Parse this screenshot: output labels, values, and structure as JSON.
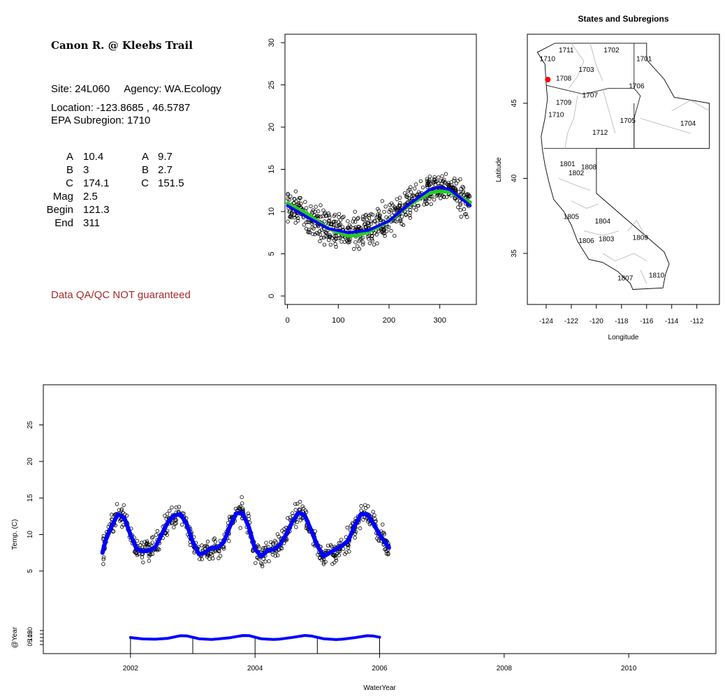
{
  "site": {
    "title": "Canon R. @ Kleebs Trail",
    "site_line": "Site: 24L060     Agency: WA.Ecology",
    "location_line": "Location: -123.8685 , 46.5787",
    "subregion_line": "EPA Subregion: 1710",
    "disclaimer": "Data QA/QC NOT guaranteed",
    "disclaimer_color": "#a52a2a"
  },
  "params": {
    "left": [
      {
        "key": "A",
        "value": "10.4"
      },
      {
        "key": "B",
        "value": "3"
      },
      {
        "key": "C",
        "value": "174.1"
      },
      {
        "key": "Mag",
        "value": "2.5"
      },
      {
        "key": "Begin",
        "value": "121.3"
      },
      {
        "key": "End",
        "value": "311"
      }
    ],
    "right": [
      {
        "key": "A",
        "value": "9.7"
      },
      {
        "key": "B",
        "value": "2.7"
      },
      {
        "key": "C",
        "value": "151.5"
      }
    ]
  },
  "chart_data": [
    {
      "type": "scatter",
      "panel": "day-of-year",
      "title": "",
      "xlabel": "",
      "ylabel": "",
      "xlim": [
        -5,
        372
      ],
      "ylim": [
        -1,
        31
      ],
      "xticks": [
        0,
        100,
        200,
        300
      ],
      "yticks": [
        0,
        5,
        10,
        15,
        20,
        25,
        30
      ],
      "series": [
        {
          "kind": "points",
          "color": "#000000",
          "x": [
            0,
            20,
            40,
            60,
            80,
            100,
            120,
            140,
            160,
            180,
            200,
            220,
            240,
            260,
            280,
            300,
            320,
            340,
            360
          ],
          "y": [
            10.8,
            10.3,
            9.5,
            8.7,
            8.1,
            7.6,
            7.5,
            7.7,
            8.0,
            8.5,
            9.2,
            10.0,
            10.9,
            11.8,
            12.5,
            12.9,
            12.7,
            12.0,
            10.9
          ]
        },
        {
          "kind": "line",
          "name": "",
          "color": "#22cc22",
          "x": [
            0,
            40,
            80,
            120,
            140,
            160,
            200,
            240,
            280,
            300,
            320,
            360
          ],
          "y": [
            11.0,
            9.7,
            8.0,
            7.1,
            7.2,
            7.6,
            8.9,
            10.8,
            12.2,
            12.4,
            12.3,
            11.1
          ]
        },
        {
          "kind": "line",
          "name": "",
          "color": "#0000ff",
          "x": [
            0,
            40,
            80,
            120,
            160,
            200,
            240,
            280,
            300,
            320,
            360
          ],
          "y": [
            10.7,
            9.3,
            8.0,
            7.5,
            7.8,
            8.9,
            10.9,
            12.6,
            12.9,
            12.6,
            10.7
          ]
        }
      ]
    },
    {
      "type": "map",
      "panel": "states-subregions",
      "title": "States and Subregions",
      "xlabel": "Longitude",
      "ylabel": "Latitude",
      "xlim": [
        -125.5,
        -110.2
      ],
      "ylim": [
        31.6,
        49.6
      ],
      "xticks": [
        -124,
        -122,
        -120,
        -118,
        -116,
        -114,
        -112
      ],
      "yticks": [
        35,
        40,
        45
      ],
      "regions": [
        {
          "label": "1711",
          "lon": -122.4,
          "lat": 48.4
        },
        {
          "label": "1702",
          "lon": -118.8,
          "lat": 48.4
        },
        {
          "label": "1701",
          "lon": -116.2,
          "lat": 47.8
        },
        {
          "label": "1710",
          "lon": -123.9,
          "lat": 47.8
        },
        {
          "label": "1703",
          "lon": -120.8,
          "lat": 47.1
        },
        {
          "label": "1708",
          "lon": -122.6,
          "lat": 46.5
        },
        {
          "label": "1706",
          "lon": -116.8,
          "lat": 46.0
        },
        {
          "label": "1707",
          "lon": -120.5,
          "lat": 45.4
        },
        {
          "label": "1709",
          "lon": -122.6,
          "lat": 44.9
        },
        {
          "label": "1710",
          "lon": -123.2,
          "lat": 44.1
        },
        {
          "label": "1705",
          "lon": -117.5,
          "lat": 43.7
        },
        {
          "label": "1704",
          "lon": -112.7,
          "lat": 43.5
        },
        {
          "label": "1712",
          "lon": -119.7,
          "lat": 42.9
        },
        {
          "label": "1801",
          "lon": -122.3,
          "lat": 40.8
        },
        {
          "label": "1808",
          "lon": -120.6,
          "lat": 40.6
        },
        {
          "label": "1802",
          "lon": -121.6,
          "lat": 40.2
        },
        {
          "label": "1805",
          "lon": -122.0,
          "lat": 37.3
        },
        {
          "label": "1804",
          "lon": -119.5,
          "lat": 37.0
        },
        {
          "label": "1806",
          "lon": -120.8,
          "lat": 35.7
        },
        {
          "label": "1803",
          "lon": -119.2,
          "lat": 35.8
        },
        {
          "label": "1809",
          "lon": -116.5,
          "lat": 35.9
        },
        {
          "label": "1807",
          "lon": -117.7,
          "lat": 33.2
        },
        {
          "label": "1810",
          "lon": -115.2,
          "lat": 33.4
        }
      ],
      "site_marker": {
        "lon": -123.8685,
        "lat": 46.5787,
        "color": "#ff0000"
      }
    },
    {
      "type": "scatter",
      "panel": "time-series",
      "title": "",
      "xlabel": "WaterYear",
      "ylabel": "Temp. (C)",
      "xlim": [
        2000.6,
        2011.4
      ],
      "ylim": [
        -6.3,
        30.5
      ],
      "xticks": [
        2002,
        2004,
        2006,
        2008,
        2010
      ],
      "yticks": [
        5,
        10,
        15,
        20,
        25
      ],
      "series": [
        {
          "kind": "points",
          "color": "#000000",
          "x": [
            2001.55,
            2001.6,
            2001.7,
            2001.8,
            2001.9,
            2002.0,
            2002.1,
            2002.2,
            2002.3,
            2002.4,
            2002.5,
            2002.6,
            2002.7,
            2002.8,
            2002.9,
            2003.0,
            2003.1,
            2003.2,
            2003.3,
            2003.4,
            2003.5,
            2003.6,
            2003.7,
            2003.8,
            2003.9,
            2004.0,
            2004.1,
            2004.2,
            2004.3,
            2004.4,
            2004.5,
            2004.6,
            2004.7,
            2004.8,
            2004.9,
            2005.0,
            2005.1,
            2005.2,
            2005.3,
            2005.4,
            2005.5,
            2005.6,
            2005.7,
            2005.8,
            2005.9,
            2006.0,
            2006.1,
            2006.15
          ],
          "y": [
            7.5,
            9.2,
            11.2,
            12.8,
            12.3,
            10.0,
            8.0,
            7.7,
            7.8,
            8.3,
            10.0,
            11.7,
            12.6,
            12.8,
            11.5,
            9.0,
            7.3,
            7.5,
            8.2,
            8.2,
            9.0,
            11.2,
            12.9,
            13.0,
            11.0,
            8.0,
            7.0,
            7.8,
            8.0,
            8.6,
            10.0,
            11.8,
            13.0,
            12.6,
            10.6,
            8.5,
            7.0,
            7.5,
            8.0,
            8.5,
            9.2,
            11.2,
            12.8,
            12.8,
            11.5,
            10.0,
            8.8,
            8.2
          ]
        },
        {
          "kind": "line",
          "name": "",
          "color": "#0000ff",
          "x": [
            2001.55,
            2001.6,
            2001.7,
            2001.8,
            2001.9,
            2002.0,
            2002.1,
            2002.2,
            2002.3,
            2002.4,
            2002.5,
            2002.6,
            2002.7,
            2002.8,
            2002.9,
            2003.0,
            2003.1,
            2003.2,
            2003.3,
            2003.4,
            2003.5,
            2003.6,
            2003.7,
            2003.8,
            2003.9,
            2004.0,
            2004.1,
            2004.2,
            2004.3,
            2004.4,
            2004.5,
            2004.6,
            2004.7,
            2004.8,
            2004.9,
            2005.0,
            2005.1,
            2005.2,
            2005.3,
            2005.4,
            2005.5,
            2005.6,
            2005.7,
            2005.8,
            2005.9,
            2006.0,
            2006.1,
            2006.15
          ],
          "y": [
            7.5,
            9.2,
            11.2,
            12.8,
            12.3,
            10.0,
            8.0,
            7.7,
            7.8,
            8.3,
            10.0,
            11.7,
            12.6,
            12.8,
            11.5,
            9.0,
            7.3,
            7.5,
            8.2,
            8.2,
            9.0,
            11.2,
            12.9,
            13.0,
            11.0,
            8.0,
            7.0,
            7.8,
            8.0,
            8.6,
            10.0,
            11.8,
            13.0,
            12.6,
            10.6,
            8.5,
            7.0,
            7.5,
            8.0,
            8.5,
            9.2,
            11.2,
            12.8,
            12.8,
            11.5,
            10.0,
            8.8,
            8.2
          ]
        }
      ]
    },
    {
      "type": "line",
      "panel": "year-strip",
      "title": "",
      "xlabel": "",
      "ylabel": "@Year",
      "xlim": [
        2000.6,
        2011.4
      ],
      "ylim": [
        -3,
        30
      ],
      "yticks": [
        0,
        5,
        10,
        15,
        20
      ],
      "year_marks": [
        2002,
        2003,
        2004,
        2005,
        2006
      ],
      "series": [
        {
          "kind": "line",
          "name": "",
          "color": "#0000ff",
          "x": [
            2002.0,
            2002.2,
            2002.4,
            2002.6,
            2002.8,
            2002.9,
            2003.1,
            2003.3,
            2003.4,
            2003.6,
            2003.8,
            2003.9,
            2004.1,
            2004.3,
            2004.4,
            2004.6,
            2004.8,
            2004.9,
            2005.1,
            2005.3,
            2005.4,
            2005.6,
            2005.8,
            2005.9,
            2006.0
          ],
          "y": [
            10.0,
            8.0,
            7.6,
            8.9,
            12.6,
            12.4,
            8.3,
            7.3,
            8.0,
            9.8,
            12.9,
            12.8,
            8.2,
            7.2,
            7.8,
            10.2,
            13.0,
            12.3,
            8.3,
            7.1,
            7.6,
            9.8,
            12.6,
            12.2,
            10.4
          ]
        }
      ]
    }
  ]
}
